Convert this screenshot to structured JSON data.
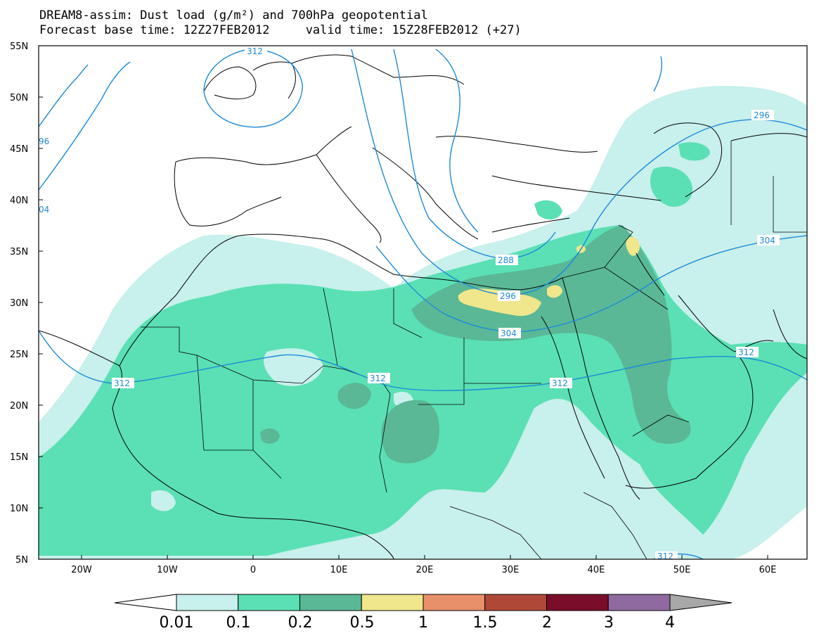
{
  "title_line1": "DREAM8-assim: Dust load (g/m²) and 700hPa geopotential",
  "title_line2": "Forecast base time: 12Z27FEB2012     valid time: 15Z28FEB2012 (+27)",
  "axes": {
    "lat_labels": [
      "55N",
      "50N",
      "45N",
      "40N",
      "35N",
      "30N",
      "25N",
      "20N",
      "15N",
      "10N",
      "5N"
    ],
    "lon_labels": [
      "20W",
      "10W",
      "0",
      "10E",
      "20E",
      "30E",
      "40E",
      "50E",
      "60E"
    ]
  },
  "colorbar": {
    "labels": [
      "0.01",
      "0.1",
      "0.2",
      "0.5",
      "1",
      "1.5",
      "2",
      "3",
      "4"
    ],
    "colors": [
      "#c8f0ec",
      "#5ae0b4",
      "#5ab896",
      "#f0e68c",
      "#e8906a",
      "#b04838",
      "#7a0e2a",
      "#8e6aa0"
    ],
    "under_color": "#ffffff",
    "over_color": "#a8a8a8"
  },
  "contours": {
    "color": "#1e8ad8",
    "labels": [
      {
        "text": "312"
      },
      {
        "text": "312"
      },
      {
        "text": "312"
      },
      {
        "text": "312"
      },
      {
        "text": "312"
      },
      {
        "text": "312"
      },
      {
        "text": "304"
      },
      {
        "text": "304"
      },
      {
        "text": "296"
      },
      {
        "text": "296"
      },
      {
        "text": "288"
      },
      {
        "text": "96"
      },
      {
        "text": "04"
      }
    ]
  }
}
